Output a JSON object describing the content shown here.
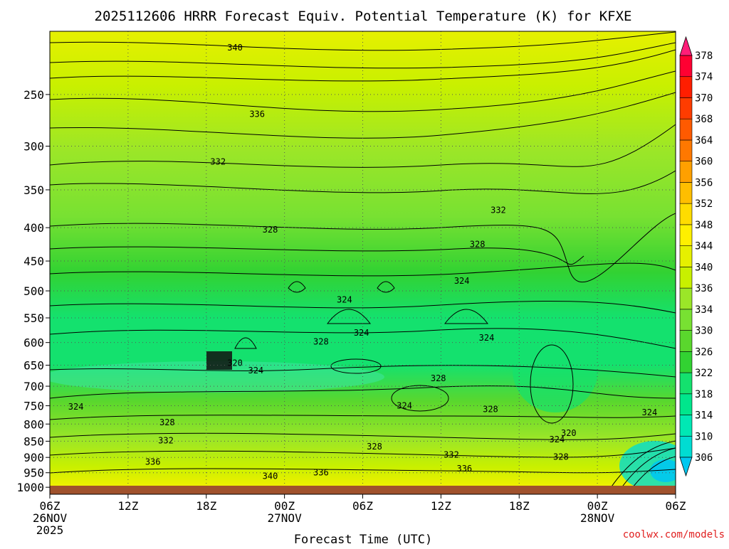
{
  "chart_data": {
    "type": "heatmap",
    "title": "2025112606 HRRR Forecast Equiv. Potential Temperature (K) for KFXE",
    "xlabel": "Forecast Time (UTC)",
    "ylabel": "",
    "credit": "coolwx.com/models",
    "y_axis": {
      "scale": "log-pressure",
      "inverted": true,
      "ylim": [
        1025,
        200
      ],
      "ticks": [
        250,
        300,
        350,
        400,
        450,
        500,
        550,
        600,
        650,
        700,
        750,
        800,
        850,
        900,
        950,
        1000
      ]
    },
    "x_axis": {
      "xlim_hours": [
        0,
        48
      ],
      "ticks": [
        {
          "hour": 0,
          "lines": [
            "06Z",
            "26NOV",
            "2025"
          ]
        },
        {
          "hour": 6,
          "lines": [
            "12Z"
          ]
        },
        {
          "hour": 12,
          "lines": [
            "18Z"
          ]
        },
        {
          "hour": 18,
          "lines": [
            "00Z",
            "27NOV"
          ]
        },
        {
          "hour": 24,
          "lines": [
            "06Z"
          ]
        },
        {
          "hour": 30,
          "lines": [
            "12Z"
          ]
        },
        {
          "hour": 36,
          "lines": [
            "18Z"
          ]
        },
        {
          "hour": 42,
          "lines": [
            "00Z",
            "28NOV"
          ]
        },
        {
          "hour": 48,
          "lines": [
            "06Z"
          ]
        }
      ]
    },
    "grid": true,
    "colorbar": {
      "placement": "right",
      "levels": [
        306,
        310,
        314,
        318,
        322,
        326,
        330,
        334,
        336,
        340,
        344,
        348,
        352,
        356,
        360,
        364,
        368,
        370,
        374,
        378
      ],
      "colors": [
        "#00c8f0",
        "#00dcd2",
        "#00e8b4",
        "#00e68c",
        "#14e16e",
        "#32d232",
        "#5ad72d",
        "#78e132",
        "#9be628",
        "#c8f000",
        "#e6f000",
        "#fff000",
        "#ffdc00",
        "#ffbe00",
        "#ffa000",
        "#ff7800",
        "#ff5a00",
        "#ff3c00",
        "#ff1e00",
        "#ff0032",
        "#ff1e78"
      ]
    },
    "contour_labels": [
      {
        "value": "340",
        "hour": 14.2,
        "p": 212
      },
      {
        "value": "336",
        "hour": 15.9,
        "p": 268
      },
      {
        "value": "332",
        "hour": 12.9,
        "p": 317
      },
      {
        "value": "332",
        "hour": 34.4,
        "p": 376
      },
      {
        "value": "328",
        "hour": 16.9,
        "p": 403
      },
      {
        "value": "328",
        "hour": 32.8,
        "p": 424
      },
      {
        "value": "324",
        "hour": 31.6,
        "p": 483
      },
      {
        "value": "324",
        "hour": 22.6,
        "p": 516
      },
      {
        "value": "324",
        "hour": 23.9,
        "p": 580
      },
      {
        "value": "324",
        "hour": 33.5,
        "p": 590
      },
      {
        "value": "328",
        "hour": 20.8,
        "p": 598
      },
      {
        "value": "320",
        "hour": 14.2,
        "p": 645
      },
      {
        "value": "324",
        "hour": 15.8,
        "p": 662
      },
      {
        "value": "328",
        "hour": 29.8,
        "p": 681
      },
      {
        "value": "324",
        "hour": 2.0,
        "p": 753
      },
      {
        "value": "324",
        "hour": 27.2,
        "p": 750
      },
      {
        "value": "328",
        "hour": 33.8,
        "p": 759
      },
      {
        "value": "324",
        "hour": 46.0,
        "p": 768
      },
      {
        "value": "328",
        "hour": 9.0,
        "p": 795
      },
      {
        "value": "320",
        "hour": 39.8,
        "p": 826
      },
      {
        "value": "324",
        "hour": 38.9,
        "p": 845
      },
      {
        "value": "332",
        "hour": 8.9,
        "p": 848
      },
      {
        "value": "328",
        "hour": 24.9,
        "p": 866
      },
      {
        "value": "332",
        "hour": 30.8,
        "p": 892
      },
      {
        "value": "328",
        "hour": 39.2,
        "p": 898
      },
      {
        "value": "336",
        "hour": 7.9,
        "p": 914
      },
      {
        "value": "336",
        "hour": 31.8,
        "p": 937
      },
      {
        "value": "340",
        "hour": 16.9,
        "p": 961
      },
      {
        "value": "336",
        "hour": 20.8,
        "p": 950
      }
    ]
  }
}
